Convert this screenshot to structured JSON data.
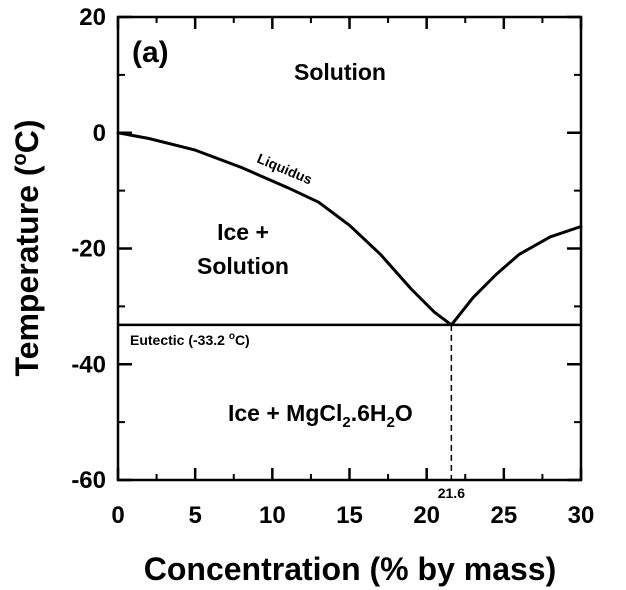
{
  "chart_data": {
    "type": "line",
    "panel_label": "(a)",
    "xlabel": "Concentration (% by mass)",
    "ylabel_main": "Temperature (",
    "ylabel_sup": "o",
    "ylabel_end": "C)",
    "xlim": [
      0,
      30
    ],
    "ylim": [
      -60,
      20
    ],
    "x_ticks": [
      0,
      5,
      10,
      15,
      20,
      25,
      30
    ],
    "y_ticks": [
      20,
      0,
      -20,
      -40,
      -60
    ],
    "grid": false,
    "series": [
      {
        "name": "Liquidus",
        "x": [
          0,
          2,
          5,
          8,
          11,
          13,
          15,
          17,
          19,
          20.5,
          21.6
        ],
        "y": [
          0,
          -1,
          -3,
          -6,
          -9.5,
          -12,
          -16,
          -21,
          -27,
          -31,
          -33.2
        ]
      },
      {
        "name": "",
        "x": [
          21.6,
          23,
          24.5,
          26,
          28,
          30
        ],
        "y": [
          -33.2,
          -28.5,
          -24.5,
          -21,
          -18,
          -16.2
        ]
      }
    ],
    "eutectic": {
      "y": -33.2,
      "label_main": "Eutectic (-33.2 ",
      "label_sup": "o",
      "label_end": "C)"
    },
    "eutectic_composition": {
      "x": 21.6,
      "label": "21.6"
    },
    "regions": {
      "solution": "Solution",
      "ice_solution_line1": "Ice +",
      "ice_solution_line2": "Solution",
      "ice_mgcl2_a": "Ice + MgCl",
      "ice_mgcl2_sub1": "2",
      "ice_mgcl2_b": ".6H",
      "ice_mgcl2_sub2": "2",
      "ice_mgcl2_c": "O"
    },
    "annotations": {
      "liquidus": "Liquidus"
    }
  }
}
